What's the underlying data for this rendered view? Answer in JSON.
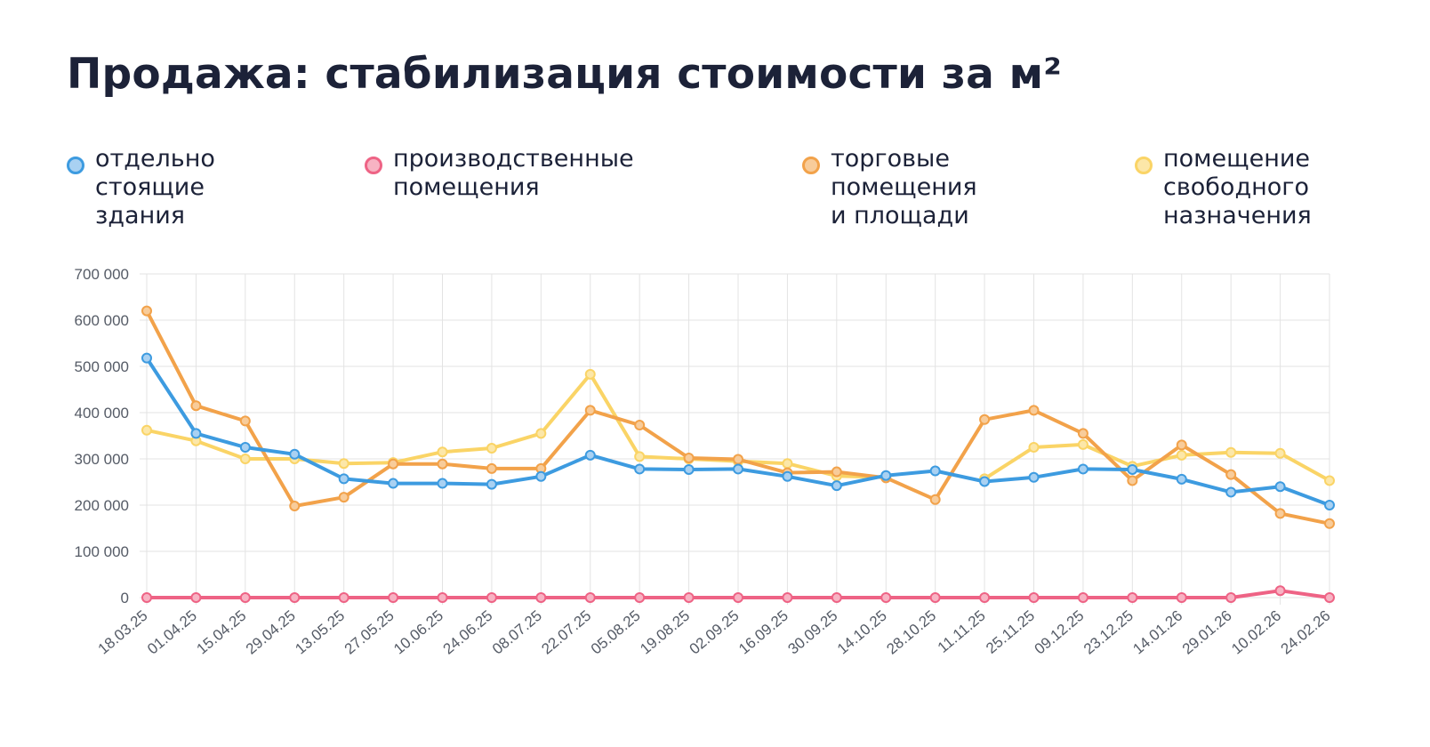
{
  "chart_data": {
    "type": "line",
    "title": "Продажа: стабилизация стоимости за м²",
    "x": [
      "18.03.25",
      "01.04.25",
      "15.04.25",
      "29.04.25",
      "13.05.25",
      "27.05.25",
      "10.06.25",
      "24.06.25",
      "08.07.25",
      "22.07.25",
      "05.08.25",
      "19.08.25",
      "02.09.25",
      "16.09.25",
      "30.09.25",
      "14.10.25",
      "28.10.25",
      "11.11.25",
      "25.11.25",
      "09.12.25",
      "23.12.25",
      "14.01.26",
      "29.01.26",
      "10.02.26",
      "24.02.26"
    ],
    "yticks": [
      "0",
      "100 000",
      "200 000",
      "300 000",
      "400 000",
      "500 000",
      "600 000",
      "700 000"
    ],
    "ylim": [
      0,
      700000
    ],
    "grid": true,
    "legend_position": "top",
    "series": [
      {
        "name": "отдельно\nстоящие\nздания",
        "color": "#3d9be0",
        "fill": "#a9d1f2",
        "values": [
          518000,
          355000,
          325000,
          310000,
          257000,
          247000,
          247000,
          245000,
          262000,
          308000,
          278000,
          277000,
          278000,
          262000,
          242000,
          264000,
          274000,
          251000,
          260000,
          278000,
          277000,
          256000,
          228000,
          240000,
          200000
        ]
      },
      {
        "name": "производственные\nпомещения",
        "color": "#ee6385",
        "fill": "#f7b3c3",
        "values": [
          0,
          0,
          0,
          0,
          0,
          0,
          0,
          0,
          0,
          0,
          0,
          0,
          0,
          0,
          0,
          0,
          0,
          0,
          0,
          0,
          0,
          0,
          0,
          15000,
          0
        ]
      },
      {
        "name": "торговые\nпомещения\nи площади",
        "color": "#f2a24a",
        "fill": "#f8cc9a",
        "values": [
          620000,
          415000,
          382000,
          198000,
          217000,
          289000,
          289000,
          279000,
          279000,
          405000,
          373000,
          302000,
          299000,
          270000,
          272000,
          259000,
          212000,
          385000,
          405000,
          355000,
          253000,
          330000,
          266000,
          182000,
          160000
        ]
      },
      {
        "name": "помещение\nсвободного\nназначения",
        "color": "#fad466",
        "fill": "#fce7a8",
        "values": [
          362000,
          339000,
          300000,
          300000,
          290000,
          292000,
          315000,
          323000,
          355000,
          483000,
          305000,
          300000,
          295000,
          290000,
          263000,
          260000,
          null,
          257000,
          325000,
          331000,
          284000,
          308000,
          314000,
          312000,
          253000
        ]
      }
    ]
  }
}
